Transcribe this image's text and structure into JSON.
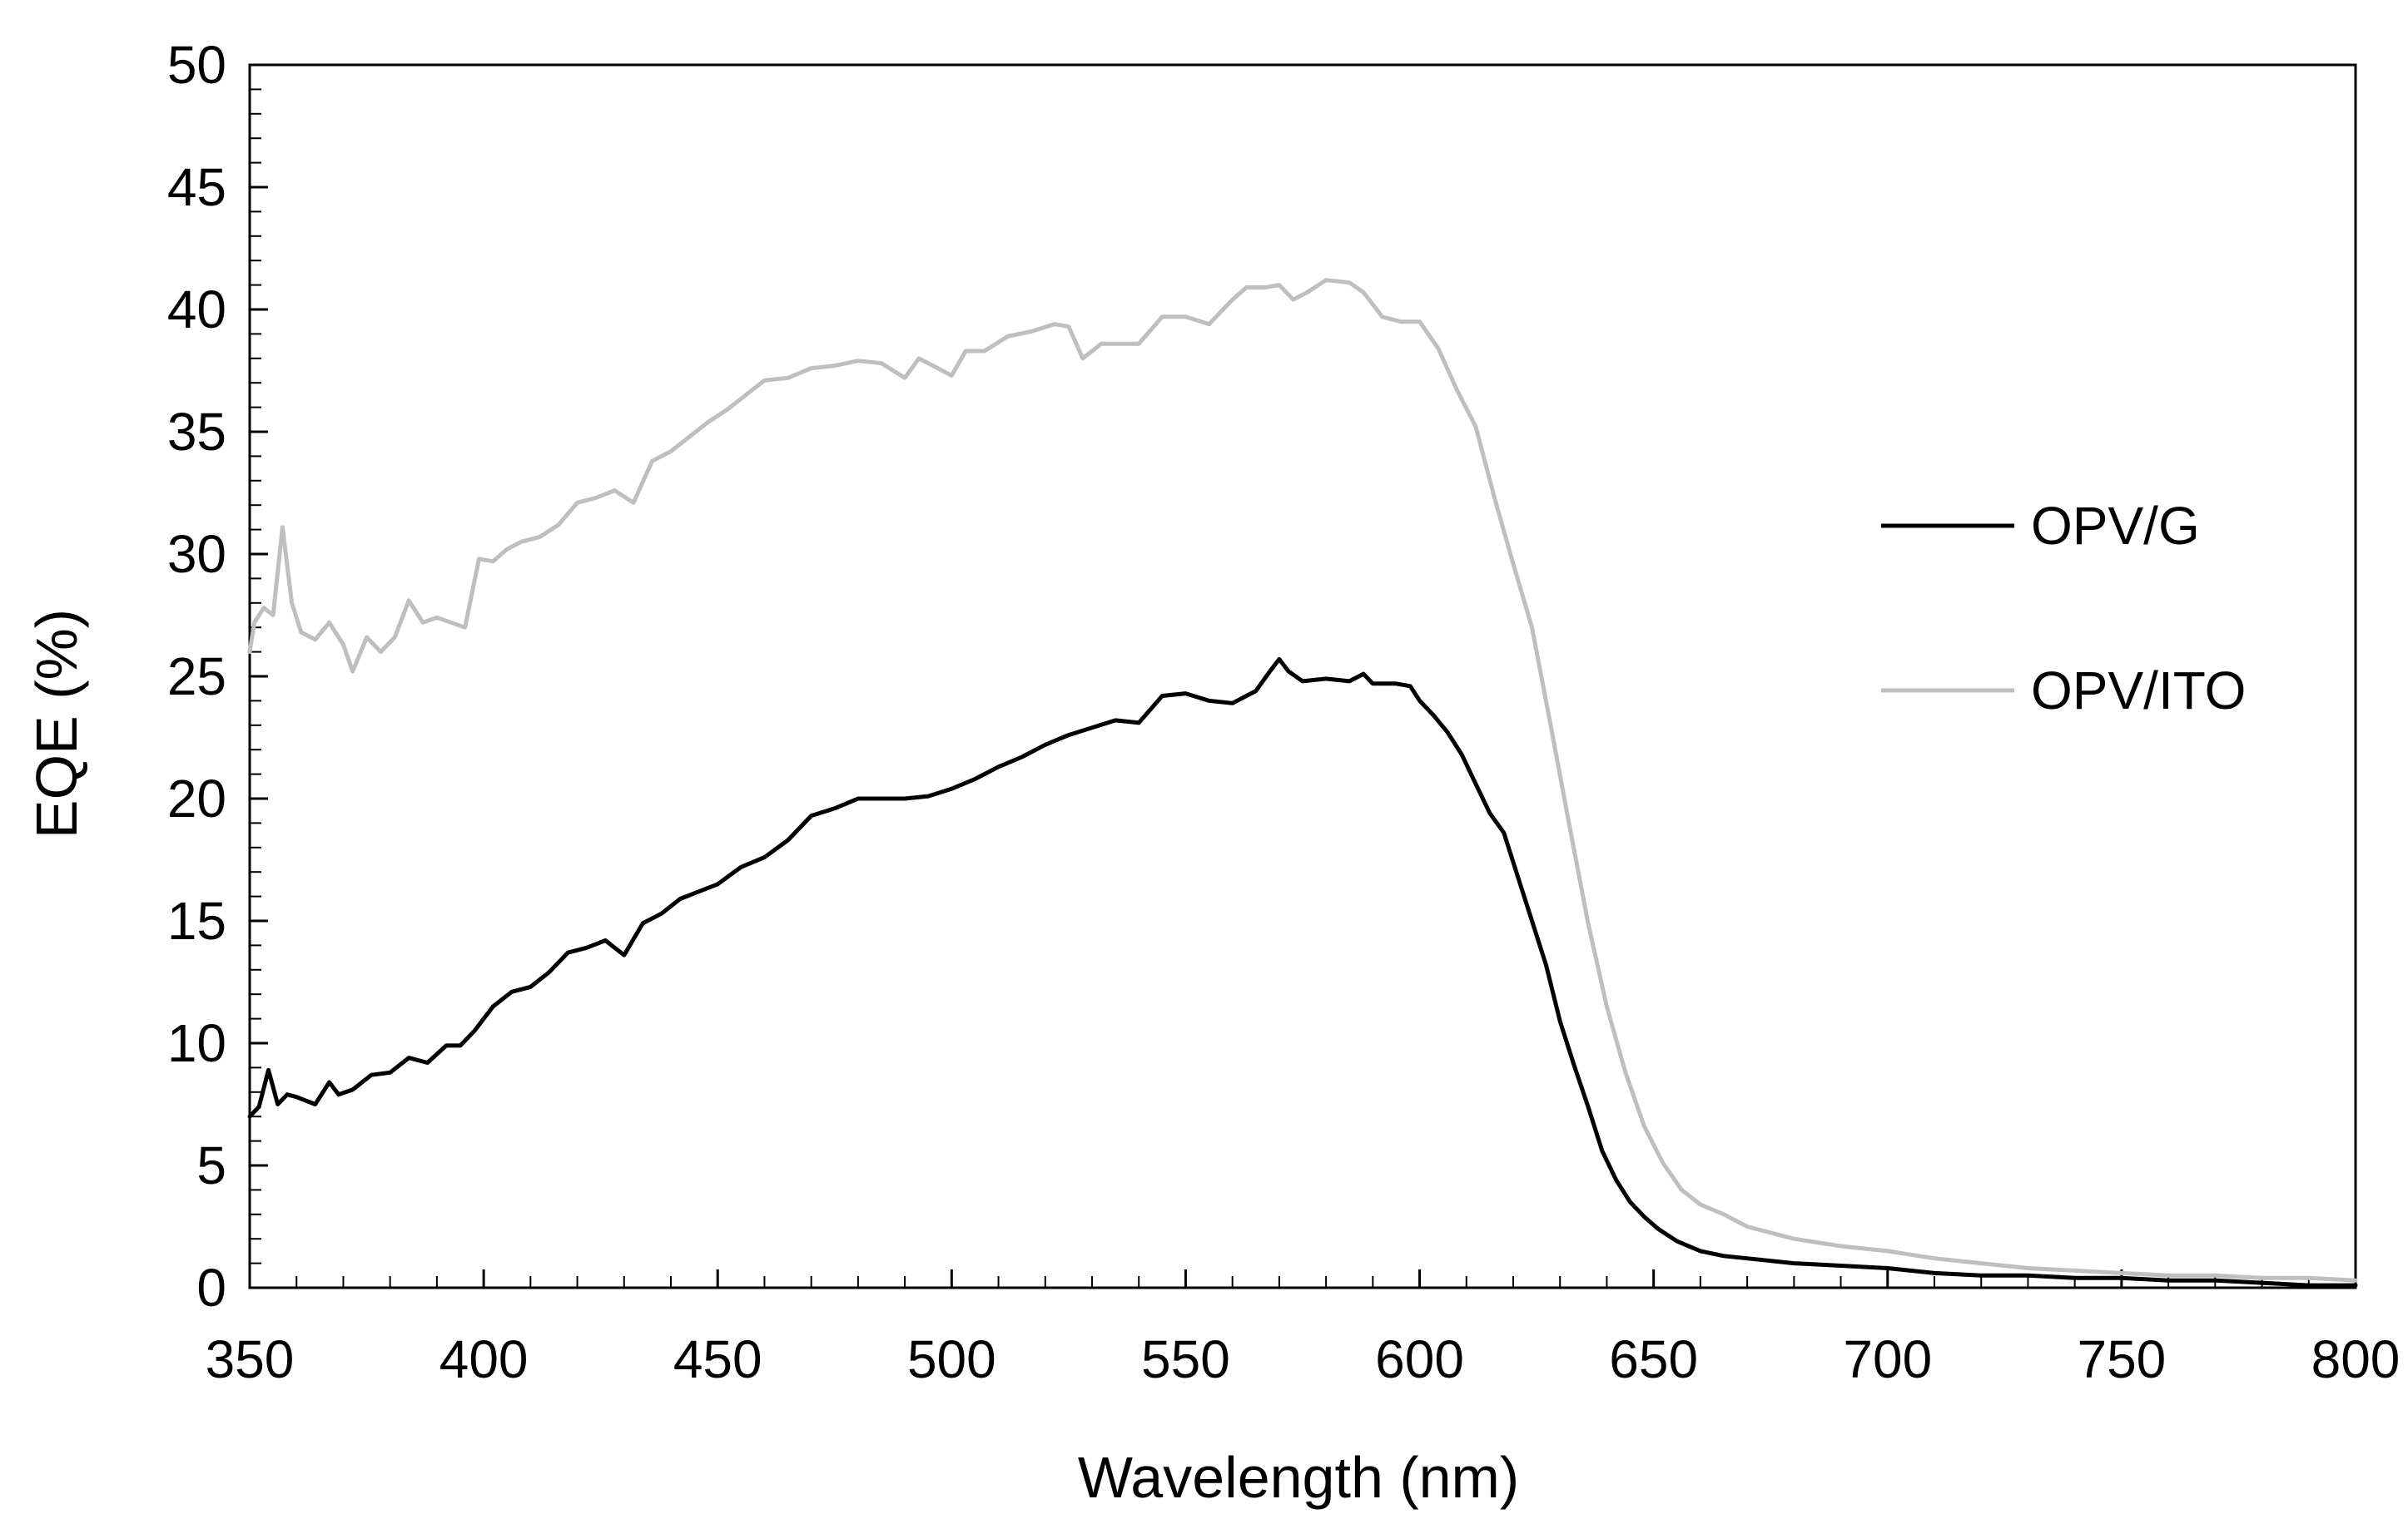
{
  "chart_data": {
    "type": "line",
    "title": "",
    "xlabel": "Wavelength (nm)",
    "ylabel": "EQE (%)",
    "xlim": [
      350,
      800
    ],
    "ylim": [
      0,
      50
    ],
    "xticks": [
      350,
      400,
      450,
      500,
      550,
      600,
      650,
      700,
      750,
      800
    ],
    "yticks": [
      0,
      5,
      10,
      15,
      20,
      25,
      30,
      35,
      40,
      45,
      50
    ],
    "grid": false,
    "legend_position": "right",
    "series": [
      {
        "name": "OPV/G",
        "color": "#000000",
        "x": [
          350,
          352,
          354,
          356,
          358,
          360,
          364,
          367,
          369,
          372,
          376,
          380,
          384,
          388,
          392,
          395,
          398,
          402,
          406,
          410,
          414,
          418,
          422,
          426,
          430,
          434,
          438,
          442,
          446,
          450,
          455,
          460,
          465,
          470,
          475,
          480,
          485,
          490,
          495,
          500,
          505,
          510,
          515,
          520,
          525,
          530,
          535,
          540,
          545,
          550,
          555,
          560,
          565,
          568,
          570,
          572,
          575,
          580,
          585,
          588,
          590,
          595,
          598,
          600,
          603,
          606,
          609,
          612,
          615,
          618,
          621,
          624,
          627,
          630,
          633,
          636,
          639,
          642,
          645,
          648,
          651,
          655,
          660,
          665,
          670,
          680,
          690,
          700,
          710,
          720,
          730,
          740,
          750,
          760,
          770,
          780,
          790,
          800
        ],
        "y": [
          7.0,
          7.4,
          8.9,
          7.5,
          7.9,
          7.8,
          7.5,
          8.4,
          7.9,
          8.1,
          8.7,
          8.8,
          9.4,
          9.2,
          9.9,
          9.9,
          10.5,
          11.5,
          12.1,
          12.3,
          12.9,
          13.7,
          13.9,
          14.2,
          13.6,
          14.9,
          15.3,
          15.9,
          16.2,
          16.5,
          17.2,
          17.6,
          18.3,
          19.3,
          19.6,
          20.0,
          20.0,
          20.0,
          20.1,
          20.4,
          20.8,
          21.3,
          21.7,
          22.2,
          22.6,
          22.9,
          23.2,
          23.1,
          24.2,
          24.3,
          24.0,
          23.9,
          24.4,
          25.2,
          25.7,
          25.2,
          24.8,
          24.9,
          24.8,
          25.1,
          24.7,
          24.7,
          24.6,
          24.0,
          23.4,
          22.7,
          21.8,
          20.6,
          19.4,
          18.6,
          16.8,
          15.0,
          13.2,
          10.9,
          9.1,
          7.4,
          5.6,
          4.4,
          3.5,
          2.9,
          2.4,
          1.9,
          1.5,
          1.3,
          1.2,
          1.0,
          0.9,
          0.8,
          0.6,
          0.5,
          0.5,
          0.4,
          0.4,
          0.3,
          0.3,
          0.2,
          0.1,
          0.1
        ]
      },
      {
        "name": "OPV/ITO",
        "color": "#bfbfbf",
        "x": [
          350,
          351,
          353,
          355,
          357,
          359,
          361,
          364,
          367,
          370,
          372,
          375,
          378,
          381,
          384,
          387,
          390,
          393,
          396,
          399,
          402,
          405,
          408,
          412,
          416,
          420,
          424,
          428,
          432,
          436,
          440,
          444,
          448,
          452,
          456,
          460,
          465,
          470,
          475,
          480,
          485,
          490,
          493,
          497,
          500,
          503,
          507,
          512,
          517,
          522,
          525,
          528,
          532,
          536,
          540,
          545,
          550,
          555,
          560,
          563,
          567,
          570,
          573,
          576,
          580,
          585,
          588,
          592,
          596,
          600,
          604,
          608,
          612,
          616,
          620,
          624,
          628,
          632,
          636,
          640,
          644,
          648,
          652,
          656,
          660,
          665,
          670,
          680,
          690,
          700,
          710,
          720,
          730,
          740,
          750,
          760,
          770,
          780,
          790,
          800
        ],
        "y": [
          26.0,
          27.2,
          27.8,
          27.5,
          31.1,
          28.0,
          26.8,
          26.5,
          27.2,
          26.3,
          25.2,
          26.6,
          26.0,
          26.6,
          28.1,
          27.2,
          27.4,
          27.2,
          27.0,
          29.8,
          29.7,
          30.2,
          30.5,
          30.7,
          31.2,
          32.1,
          32.3,
          32.6,
          32.1,
          33.8,
          34.2,
          34.8,
          35.4,
          35.9,
          36.5,
          37.1,
          37.2,
          37.6,
          37.7,
          37.9,
          37.8,
          37.2,
          38.0,
          37.6,
          37.3,
          38.3,
          38.3,
          38.9,
          39.1,
          39.4,
          39.3,
          38.0,
          38.6,
          38.6,
          38.6,
          39.7,
          39.7,
          39.4,
          40.4,
          40.9,
          40.9,
          41.0,
          40.4,
          40.7,
          41.2,
          41.1,
          40.7,
          39.7,
          39.5,
          39.5,
          38.4,
          36.7,
          35.2,
          32.3,
          29.6,
          27.0,
          23.0,
          18.9,
          14.9,
          11.5,
          8.8,
          6.6,
          5.1,
          4.0,
          3.4,
          3.0,
          2.5,
          2.0,
          1.7,
          1.5,
          1.2,
          1.0,
          0.8,
          0.7,
          0.6,
          0.5,
          0.5,
          0.4,
          0.4,
          0.3
        ]
      }
    ]
  }
}
